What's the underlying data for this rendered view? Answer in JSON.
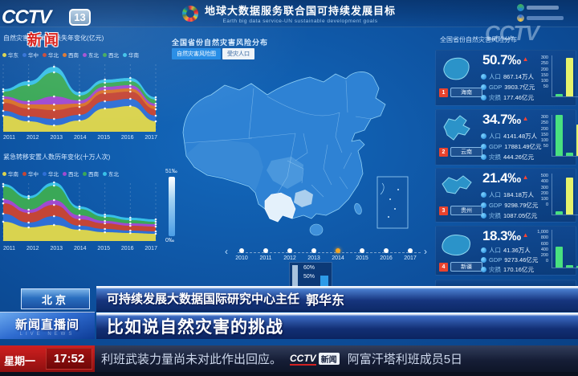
{
  "tv": {
    "channel": {
      "brand": "CCTV",
      "number": "13",
      "news_overlay": "新闻"
    },
    "watermark": "CCTV",
    "lower_thirds": {
      "location": "北京",
      "speaker_title": "可持续发展大数据国际研究中心主任",
      "speaker_name": "郭华东",
      "headline": "比如说自然灾害的挑战",
      "program_name": "新闻直播间",
      "program_subtitle": "LIVE NEWS"
    },
    "ticker": {
      "weekday": "星期一",
      "time": "17:52",
      "text_before": "利班武装力量尚未对此作出回应。",
      "badge_brand": "CCTV",
      "badge_label": "新闻",
      "text_after": "阿富汗塔利班成员5日"
    }
  },
  "dashboard": {
    "icons": {
      "timeline_prev": "‹",
      "timeline_next": "›",
      "rate_up": "▲"
    },
    "header": {
      "title": "地球大数据服务联合国可持续发展目标",
      "subtitle": "Earth big data service-UN sustainable development goals"
    },
    "left_charts": [
      {
        "title": "自然灾害直接经济损失年变化(亿元)",
        "legend": [
          "华东",
          "华中",
          "华北",
          "西南",
          "东北",
          "西北",
          "华南"
        ],
        "legend_colors": [
          "#d9d34f",
          "#2e6fd6",
          "#c44536",
          "#d8722c",
          "#a04ad0",
          "#3aa857",
          "#38c0e8"
        ],
        "years": [
          "2011",
          "2012",
          "2013",
          "2014",
          "2015",
          "2016",
          "2017"
        ],
        "layers": [
          {
            "color": "#d9d34f",
            "values": [
              20,
              13,
              8,
              14,
              29,
              32,
              13
            ]
          },
          {
            "color": "#2e6fd6",
            "values": [
              6,
              6,
              8,
              7,
              9,
              9,
              7
            ]
          },
          {
            "color": "#c44536",
            "values": [
              10,
              10,
              11,
              10,
              10,
              9,
              8
            ]
          },
          {
            "color": "#d8722c",
            "values": [
              5,
              5,
              7,
              4,
              4,
              4,
              4
            ]
          },
          {
            "color": "#a04ad0",
            "values": [
              3,
              4,
              10,
              4,
              4,
              4,
              3
            ]
          },
          {
            "color": "#3aa857",
            "values": [
              6,
              20,
              30,
              6,
              5,
              5,
              5
            ]
          },
          {
            "color": "#38c0e8",
            "values": [
              3,
              5,
              7,
              4,
              4,
              4,
              3
            ]
          }
        ]
      },
      {
        "title": "紧急转移安置人数历年变化(十万人次)",
        "legend": [
          "华南",
          "华中",
          "华北",
          "西北",
          "西南",
          "东北"
        ],
        "legend_colors": [
          "#d9d34f",
          "#c44536",
          "#2e6fd6",
          "#a04ad0",
          "#3aa857",
          "#38c0e8"
        ],
        "years": [
          "2011",
          "2012",
          "2013",
          "2014",
          "2015",
          "2016",
          "2017"
        ],
        "layers": [
          {
            "color": "#d9d34f",
            "values": [
              24,
              17,
              20,
              14,
              11,
              10,
              9
            ]
          },
          {
            "color": "#2e6fd6",
            "values": [
              10,
              6,
              11,
              5,
              4,
              3,
              3
            ]
          },
          {
            "color": "#c44536",
            "values": [
              13,
              12,
              14,
              8,
              7,
              6,
              6
            ]
          },
          {
            "color": "#a04ad0",
            "values": [
              5,
              4,
              6,
              5,
              3,
              3,
              3
            ]
          },
          {
            "color": "#3aa857",
            "values": [
              16,
              14,
              18,
              8,
              5,
              4,
              3
            ]
          },
          {
            "color": "#38c0e8",
            "values": [
              3,
              3,
              4,
              3,
              3,
              3,
              3
            ]
          }
        ]
      }
    ],
    "map_panel": {
      "title": "全国省份自然灾害风险分布",
      "tabs": [
        {
          "label": "自然灾害风险图"
        },
        {
          "label": "受灾人口"
        }
      ],
      "legend_max": "51‰",
      "legend_min": "0‰",
      "timeline": {
        "years": [
          "2010",
          "2011",
          "2012",
          "2013",
          "2014",
          "2015",
          "2016",
          "2017"
        ],
        "active": "2014"
      },
      "tooltip": {
        "value_top": "60%",
        "value_bottom": "50%"
      }
    },
    "right_panel": {
      "title": "全国省份自然灾害风险分布",
      "cards": [
        {
          "rank": "1",
          "province": "海南",
          "rate": "50.7‰",
          "stats": [
            {
              "label": "人口",
              "value": "867.14万人"
            },
            {
              "label": "GDP",
              "value": "3903.7亿元"
            },
            {
              "label": "灾损",
              "value": "177.46亿元"
            }
          ],
          "axis": [
            "300",
            "250",
            "200",
            "150",
            "100",
            "50"
          ],
          "bar_max": 300,
          "bars": [
            {
              "v": 18,
              "color": "#49e07f"
            },
            {
              "v": 282,
              "color": "#e6f36c"
            }
          ]
        },
        {
          "rank": "2",
          "province": "云南",
          "rate": "34.7‰",
          "stats": [
            {
              "label": "人口",
              "value": "4141.48万人"
            },
            {
              "label": "GDP",
              "value": "17881.49亿元"
            },
            {
              "label": "灾损",
              "value": "444.26亿元"
            }
          ],
          "axis": [
            "300",
            "250",
            "200",
            "150",
            "100",
            "50"
          ],
          "bar_max": 300,
          "bars": [
            {
              "v": 298,
              "color": "#49e07f"
            },
            {
              "v": 22,
              "color": "#49e07f"
            },
            {
              "v": 232,
              "color": "#e6f36c"
            }
          ]
        },
        {
          "rank": "3",
          "province": "贵州",
          "rate": "21.4‰",
          "stats": [
            {
              "label": "人口",
              "value": "184.18万人"
            },
            {
              "label": "GDP",
              "value": "9298.79亿元"
            },
            {
              "label": "灾损",
              "value": "1087.05亿元"
            }
          ],
          "axis": [
            "500",
            "400",
            "300",
            "200",
            "100",
            "0"
          ],
          "bar_max": 500,
          "bars": [
            {
              "v": 40,
              "color": "#49e07f"
            },
            {
              "v": 452,
              "color": "#e6f36c"
            }
          ]
        },
        {
          "rank": "4",
          "province": "新疆",
          "rate": "18.3‰",
          "stats": [
            {
              "label": "人口",
              "value": "41.36万人"
            },
            {
              "label": "GDP",
              "value": "9273.46亿元"
            },
            {
              "label": "灾损",
              "value": "170.16亿元"
            }
          ],
          "axis": [
            "1,000",
            "800",
            "600",
            "400",
            "200",
            "0"
          ],
          "bar_max": 1000,
          "bars": [
            {
              "v": 560,
              "color": "#49e07f"
            },
            {
              "v": 70,
              "color": "#49e07f"
            },
            {
              "v": 48,
              "color": "#49e07f"
            }
          ]
        }
      ]
    }
  }
}
